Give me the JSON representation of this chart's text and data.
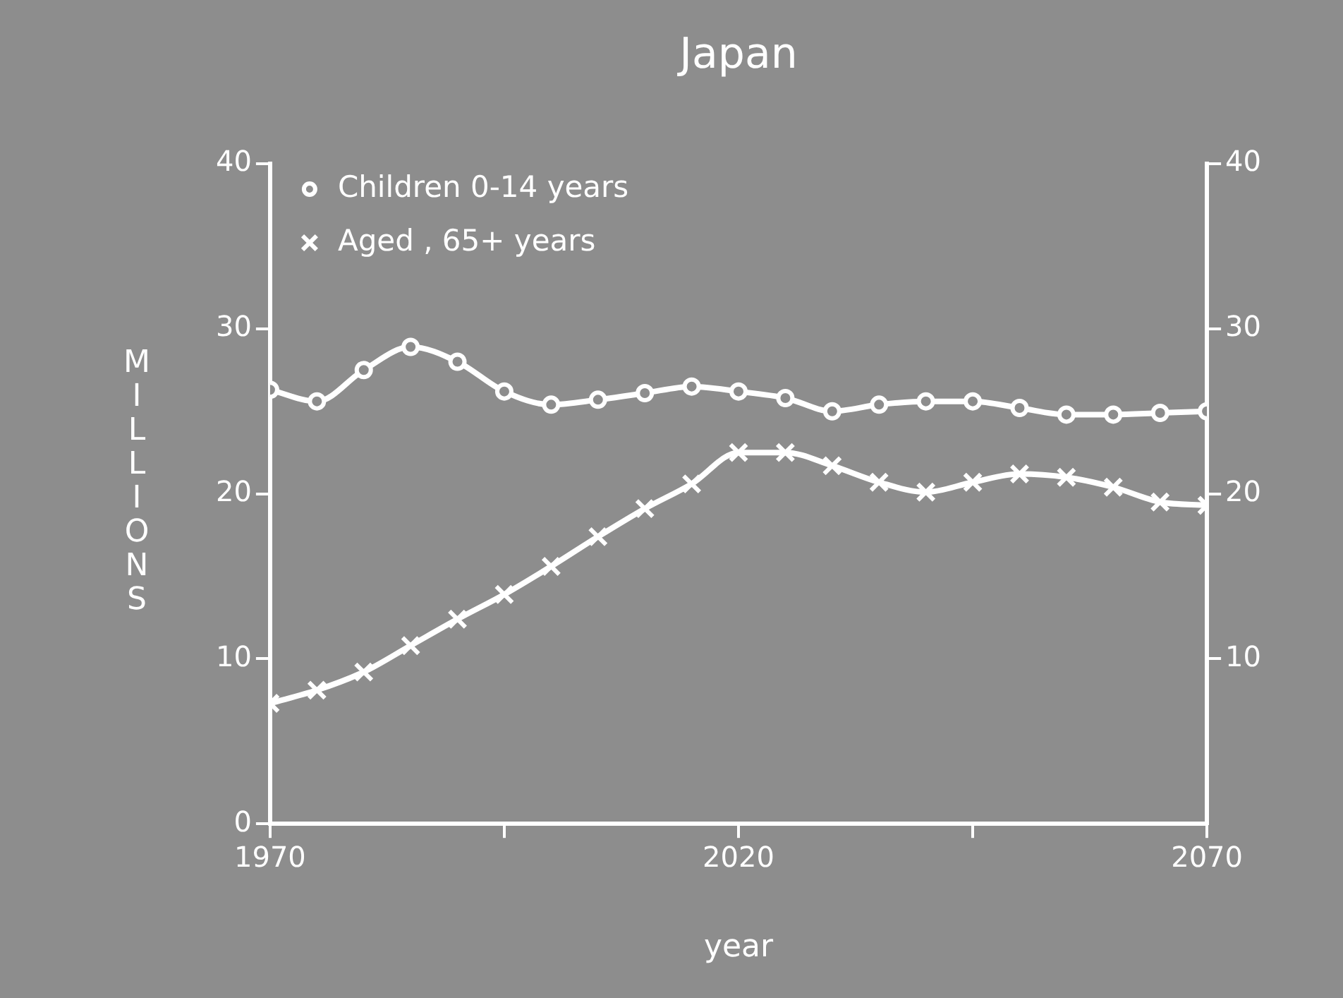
{
  "chart_data": {
    "type": "line",
    "title": "Japan",
    "xlabel": "year",
    "ylabel": "MILLIONS",
    "x": [
      1970,
      1975,
      1980,
      1985,
      1990,
      1995,
      2000,
      2005,
      2010,
      2015,
      2020,
      2025,
      2030,
      2035,
      2040,
      2045,
      2050,
      2055,
      2060,
      2065,
      2070
    ],
    "series": [
      {
        "name": "Children 0-14 years",
        "color": "#ffffff",
        "marker": "circle",
        "values": [
          26.3,
          25.6,
          27.5,
          28.9,
          28.0,
          26.2,
          25.4,
          25.7,
          26.1,
          26.5,
          26.2,
          25.8,
          25.0,
          25.4,
          25.6,
          25.6,
          25.2,
          24.8,
          24.8,
          24.9,
          25.0
        ]
      },
      {
        "name": "Aged , 65+ years",
        "color": "#ffffff",
        "marker": "cross",
        "values": [
          7.3,
          8.1,
          9.2,
          10.8,
          12.4,
          13.9,
          15.6,
          17.4,
          19.1,
          20.6,
          22.5,
          22.5,
          21.7,
          20.7,
          20.1,
          20.7,
          21.2,
          21.0,
          20.4,
          19.5,
          19.3
        ]
      }
    ],
    "xlim": [
      1970,
      2070
    ],
    "xticks": [
      1970,
      {
        "value": 1995,
        "label": null
      },
      2020,
      {
        "value": 2045,
        "label": null
      },
      2070
    ],
    "ylim": [
      0,
      40
    ],
    "yticks": [
      0,
      10,
      20,
      30,
      40
    ],
    "y2lim": [
      0,
      40
    ],
    "y2ticks": [
      10,
      20,
      30,
      40
    ],
    "grid": false,
    "legend": "top left",
    "line_style": "solid"
  }
}
